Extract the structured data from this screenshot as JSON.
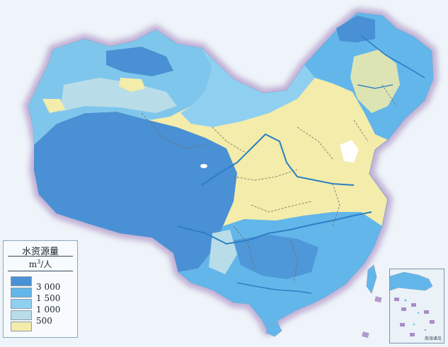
{
  "legend": {
    "title": "水资源量",
    "unit_base": "m",
    "unit_exp": "3",
    "unit_tail": "/人",
    "levels": [
      {
        "label": "",
        "color": "#4a90d4"
      },
      {
        "label": "3 000",
        "color": "#62b6ea"
      },
      {
        "label": "1 500",
        "color": "#8fd0f1"
      },
      {
        "label": "1 000",
        "color": "#b9dde8"
      },
      {
        "label": "500",
        "color": "#f3ecaa"
      }
    ]
  },
  "inset": {
    "caption": "南海诸岛"
  },
  "colors": {
    "background": "#eef4f9",
    "border_glow": "#b49acb",
    "rivers": "#2c7fc4",
    "boundaries": "#6f6f6f",
    "lake": "#ffffff"
  }
}
